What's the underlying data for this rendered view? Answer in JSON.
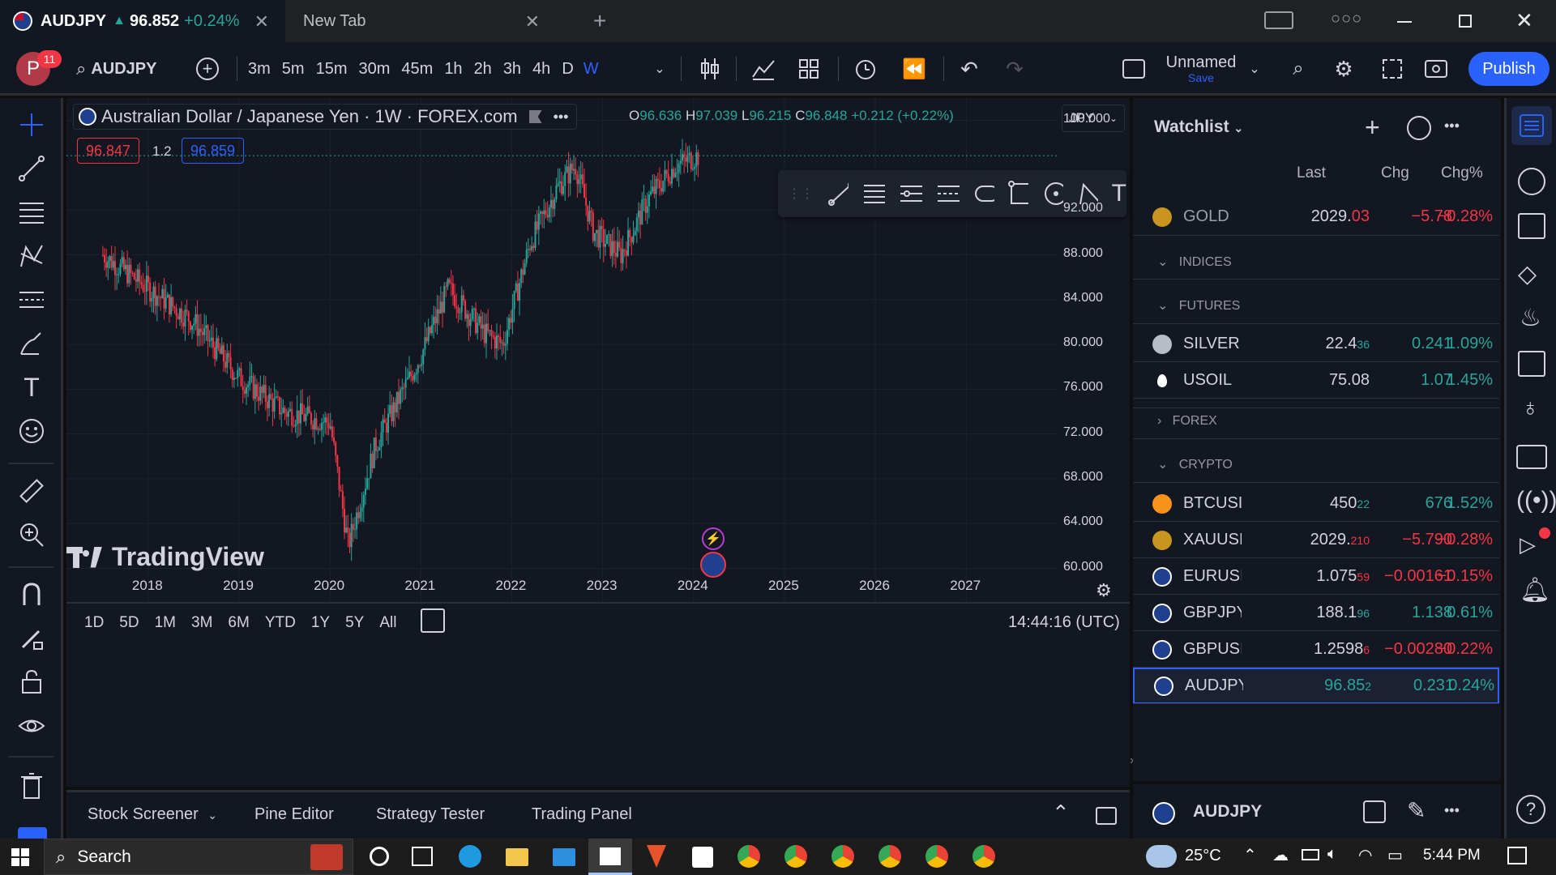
{
  "browser": {
    "tab1_symbol": "AUDJPY",
    "tab1_price": "96.852",
    "tab1_change": "+0.24%",
    "tab2_title": "New Tab"
  },
  "toolbar": {
    "avatar_letter": "P",
    "notif_count": "11",
    "symbol": "AUDJPY",
    "intervals": [
      "3m",
      "5m",
      "15m",
      "30m",
      "45m",
      "1h",
      "2h",
      "3h",
      "4h",
      "D",
      "W"
    ],
    "active_interval": "W",
    "layout_name": "Unnamed",
    "save_label": "Save",
    "publish_label": "Publish"
  },
  "legend": {
    "title": "Australian Dollar / Japanese Yen · 1W · FOREX.com",
    "o_label": "O",
    "o_value": "96.636",
    "h_label": "H",
    "h_value": "97.039",
    "l_label": "L",
    "l_value": "96.215",
    "c_label": "C",
    "c_value": "96.848",
    "change": "+0.212 (+0.22%)",
    "bid": "96.847",
    "spread": "1.2",
    "ask": "96.859",
    "currency": "JPY"
  },
  "chart_data": {
    "type": "candlestick",
    "price_ticks": [
      "100.000",
      "92.000",
      "88.000",
      "84.000",
      "80.000",
      "76.000",
      "72.000",
      "68.000",
      "64.000",
      "60.000"
    ],
    "year_ticks": [
      "2018",
      "2019",
      "2020",
      "2021",
      "2022",
      "2023",
      "2024",
      "2025",
      "2026",
      "2027"
    ],
    "ylim": [
      57,
      102
    ],
    "close_series": [
      {
        "x": 2017.5,
        "y": 88
      },
      {
        "x": 2018.0,
        "y": 85
      },
      {
        "x": 2018.5,
        "y": 82
      },
      {
        "x": 2019.0,
        "y": 77
      },
      {
        "x": 2019.5,
        "y": 74
      },
      {
        "x": 2020.0,
        "y": 73
      },
      {
        "x": 2020.2,
        "y": 62
      },
      {
        "x": 2020.5,
        "y": 71
      },
      {
        "x": 2021.0,
        "y": 79
      },
      {
        "x": 2021.3,
        "y": 85
      },
      {
        "x": 2021.7,
        "y": 81
      },
      {
        "x": 2021.9,
        "y": 80
      },
      {
        "x": 2022.2,
        "y": 89
      },
      {
        "x": 2022.5,
        "y": 94
      },
      {
        "x": 2022.7,
        "y": 96
      },
      {
        "x": 2022.9,
        "y": 90
      },
      {
        "x": 2023.2,
        "y": 88
      },
      {
        "x": 2023.5,
        "y": 93
      },
      {
        "x": 2023.8,
        "y": 96
      },
      {
        "x": 2024.05,
        "y": 96.85
      }
    ],
    "watermark": "TradingView"
  },
  "footer": {
    "ranges": [
      "1D",
      "5D",
      "1M",
      "3M",
      "6M",
      "YTD",
      "1Y",
      "5Y",
      "All"
    ],
    "time": "14:44:16 (UTC)",
    "panels": [
      "Stock Screener",
      "Pine Editor",
      "Strategy Tester",
      "Trading Panel"
    ]
  },
  "watchlist": {
    "title": "Watchlist",
    "col_last": "Last",
    "col_chg": "Chg",
    "col_chgp": "Chg%",
    "gold": {
      "sym": "GOLD",
      "last_main": "2029.",
      "last_tail": "03",
      "chg": "−5.78",
      "chgp": "−0.28%"
    },
    "sections": {
      "indices": "INDICES",
      "futures": "FUTURES",
      "forex": "FOREX",
      "crypto": "CRYPTO"
    },
    "rows": [
      {
        "sym": "SILVER",
        "last_main": "22.4",
        "last_tail": "36",
        "chg": "0.241",
        "chgp": "1.09%",
        "dir": "up",
        "icon": "silver-icon"
      },
      {
        "sym": "USOIL",
        "last_main": "75.08",
        "last_tail": "",
        "chg": "1.07",
        "chgp": "1.45%",
        "dir": "up",
        "icon": "oil-drop-icon"
      },
      {
        "sym": "BTCUSI",
        "last_main": "450",
        "last_tail": "22",
        "chg": "676",
        "chgp": "1.52%",
        "dir": "up",
        "icon": "bitcoin-icon"
      },
      {
        "sym": "XAUUSI",
        "last_main": "2029.",
        "last_tail": "210",
        "chg": "−5.790",
        "chgp": "−0.28%",
        "dir": "dn",
        "icon": "gold-icon"
      },
      {
        "sym": "EURUSI",
        "last_main": "1.075",
        "last_tail": "59",
        "chg": "−0.00161",
        "chgp": "−0.15%",
        "dir": "dn",
        "icon": "eu-flag-icon"
      },
      {
        "sym": "GBPJPY",
        "last_main": "188.1",
        "last_tail": "96",
        "chg": "1.138",
        "chgp": "0.61%",
        "dir": "up",
        "icon": "uk-flag-icon"
      },
      {
        "sym": "GBPUSI",
        "last_main": "1.2598",
        "last_tail": "6",
        "chg": "−0.00280",
        "chgp": "−0.22%",
        "dir": "dn",
        "icon": "uk-flag-icon"
      },
      {
        "sym": "AUDJPY",
        "last_main": "96.85",
        "last_tail": "2",
        "chg": "0.231",
        "chgp": "0.24%",
        "dir": "up",
        "icon": "au-flag-icon"
      }
    ],
    "detail_symbol": "AUDJPY"
  },
  "taskbar": {
    "search": "Search",
    "temp": "25°C",
    "clock": "5:44 PM"
  },
  "colors": {
    "up": "#26a69a",
    "down": "#f23645",
    "accent": "#2962ff",
    "bg": "#131722"
  }
}
